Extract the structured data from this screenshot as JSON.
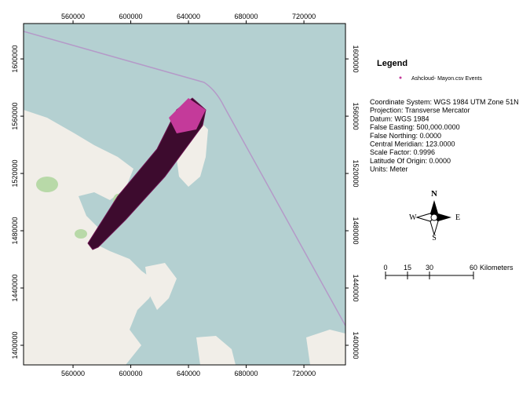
{
  "map": {
    "xlim": [
      525700,
      748800
    ],
    "ylim": [
      1386300,
      1624700
    ],
    "xticks": [
      560000,
      600000,
      640000,
      680000,
      720000
    ],
    "yticks": [
      1400000,
      1440000,
      1480000,
      1520000,
      1560000,
      1600000
    ]
  },
  "legend": {
    "title": "Legend",
    "entry": "Ashcloud- Mayon.csv Events"
  },
  "coordinate_info": [
    "Coordinate System: WGS 1984 UTM Zone 51N",
    "Projection: Transverse Mercator",
    "Datum: WGS 1984",
    "False Easting: 500,000.0000",
    "False Northing: 0.0000",
    "Central Meridian: 123.0000",
    "Scale Factor: 0.9996",
    "Latitude Of Origin: 0.0000",
    "Units: Meter"
  ],
  "north_arrow": {
    "n": "N",
    "s": "S",
    "e": "E",
    "w": "W"
  },
  "scale_bar": {
    "ticks": [
      0,
      15,
      30,
      60
    ],
    "unit": "Kilometers"
  }
}
